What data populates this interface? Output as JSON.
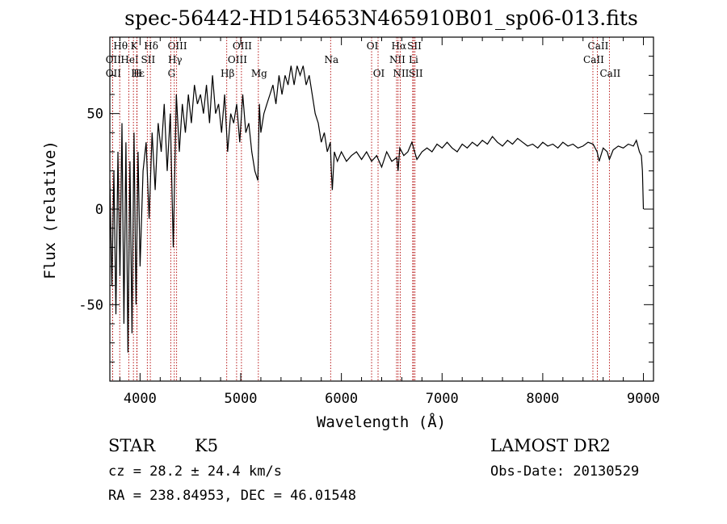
{
  "chart_data": {
    "type": "line",
    "title": "spec-56442-HD154653N465910B01_sp06-013.fits",
    "xlabel": "Wavelength (Å)",
    "ylabel": "Flux (relative)",
    "xlim": [
      3700,
      9100
    ],
    "ylim": [
      -90,
      90
    ],
    "x_ticks": [
      4000,
      5000,
      6000,
      7000,
      8000,
      9000
    ],
    "y_ticks": [
      -50,
      0,
      50
    ],
    "series": [
      {
        "color": "#000000",
        "x": [
          3700,
          3720,
          3740,
          3760,
          3780,
          3800,
          3820,
          3840,
          3860,
          3880,
          3900,
          3920,
          3940,
          3960,
          3980,
          4000,
          4030,
          4060,
          4090,
          4120,
          4150,
          4180,
          4210,
          4240,
          4270,
          4300,
          4330,
          4360,
          4390,
          4420,
          4450,
          4480,
          4510,
          4540,
          4570,
          4600,
          4630,
          4660,
          4690,
          4720,
          4750,
          4780,
          4810,
          4840,
          4870,
          4900,
          4930,
          4960,
          4990,
          5020,
          5050,
          5080,
          5110,
          5140,
          5170,
          5185,
          5200,
          5230,
          5260,
          5290,
          5320,
          5350,
          5380,
          5410,
          5440,
          5470,
          5500,
          5530,
          5560,
          5590,
          5620,
          5650,
          5680,
          5710,
          5740,
          5770,
          5800,
          5830,
          5860,
          5890,
          5900,
          5910,
          5930,
          5960,
          6000,
          6050,
          6100,
          6150,
          6200,
          6250,
          6300,
          6350,
          6400,
          6450,
          6500,
          6550,
          6563,
          6580,
          6620,
          6660,
          6700,
          6750,
          6800,
          6850,
          6900,
          6950,
          7000,
          7050,
          7100,
          7150,
          7200,
          7250,
          7300,
          7350,
          7400,
          7450,
          7500,
          7550,
          7600,
          7650,
          7700,
          7750,
          7800,
          7850,
          7900,
          7950,
          8000,
          8050,
          8100,
          8150,
          8200,
          8250,
          8300,
          8350,
          8400,
          8450,
          8500,
          8540,
          8560,
          8600,
          8640,
          8662,
          8700,
          8750,
          8800,
          8850,
          8900,
          8930,
          8960,
          8980,
          8990,
          9000
        ],
        "y": [
          15,
          -40,
          20,
          -55,
          30,
          -35,
          45,
          -60,
          35,
          -75,
          25,
          -65,
          40,
          -50,
          30,
          -30,
          20,
          35,
          -5,
          40,
          10,
          45,
          30,
          55,
          20,
          50,
          -20,
          60,
          30,
          55,
          40,
          60,
          45,
          65,
          55,
          60,
          50,
          65,
          45,
          70,
          50,
          55,
          40,
          60,
          30,
          50,
          45,
          55,
          35,
          60,
          40,
          45,
          30,
          20,
          15,
          55,
          40,
          50,
          55,
          60,
          65,
          55,
          70,
          60,
          70,
          65,
          75,
          65,
          75,
          70,
          75,
          65,
          70,
          60,
          50,
          45,
          35,
          40,
          30,
          35,
          20,
          10,
          30,
          25,
          30,
          25,
          28,
          30,
          26,
          30,
          25,
          28,
          22,
          30,
          25,
          27,
          20,
          32,
          28,
          30,
          35,
          26,
          30,
          32,
          30,
          34,
          32,
          35,
          32,
          30,
          34,
          32,
          35,
          33,
          36,
          34,
          38,
          35,
          33,
          36,
          34,
          37,
          35,
          33,
          34,
          32,
          35,
          33,
          34,
          32,
          35,
          33,
          34,
          32,
          33,
          35,
          34,
          30,
          25,
          32,
          30,
          26,
          31,
          33,
          32,
          34,
          33,
          36,
          30,
          28,
          20,
          0
        ]
      }
    ],
    "line_markers": [
      {
        "label": "Hθ",
        "x": 3798,
        "row": 0
      },
      {
        "label": "OII",
        "x": 3727,
        "row": 1
      },
      {
        "label": "OII",
        "x": 3727,
        "row": 2
      },
      {
        "label": "K",
        "x": 3934,
        "row": 0
      },
      {
        "label": "Hδ",
        "x": 4102,
        "row": 0
      },
      {
        "label": "HeI",
        "x": 3889,
        "row": 1
      },
      {
        "label": "SII",
        "x": 4072,
        "row": 1
      },
      {
        "label": "Hε",
        "x": 3970,
        "row": 2
      },
      {
        "label": "H",
        "x": 3968,
        "row": 2
      },
      {
        "label": "OIII",
        "x": 4363,
        "row": 0
      },
      {
        "label": "Hγ",
        "x": 4340,
        "row": 1
      },
      {
        "label": "G",
        "x": 4305,
        "row": 2
      },
      {
        "label": "OIII",
        "x": 5007,
        "row": 0
      },
      {
        "label": "OIII",
        "x": 4959,
        "row": 1
      },
      {
        "label": "Hβ",
        "x": 4861,
        "row": 2
      },
      {
        "label": "Mg",
        "x": 5175,
        "row": 2
      },
      {
        "label": "Na",
        "x": 5893,
        "row": 1
      },
      {
        "label": "OI",
        "x": 6300,
        "row": 0
      },
      {
        "label": "OI",
        "x": 6364,
        "row": 2
      },
      {
        "label": "Hα",
        "x": 6563,
        "row": 0
      },
      {
        "label": "SII",
        "x": 6717,
        "row": 0
      },
      {
        "label": "NII",
        "x": 6548,
        "row": 1
      },
      {
        "label": "Li",
        "x": 6708,
        "row": 1
      },
      {
        "label": "NII",
        "x": 6584,
        "row": 2
      },
      {
        "label": "SII",
        "x": 6731,
        "row": 2
      },
      {
        "label": "CaII",
        "x": 8542,
        "row": 0
      },
      {
        "label": "CaII",
        "x": 8498,
        "row": 1
      },
      {
        "label": "CaII",
        "x": 8662,
        "row": 2
      }
    ]
  },
  "footer": {
    "class_label": "STAR",
    "subclass": "K5",
    "survey": "LAMOST DR2",
    "cz": "cz = 28.2 ± 24.4 km/s",
    "obs_date": "Obs-Date: 20130529",
    "coords": "RA = 238.84953, DEC =  46.01548"
  }
}
